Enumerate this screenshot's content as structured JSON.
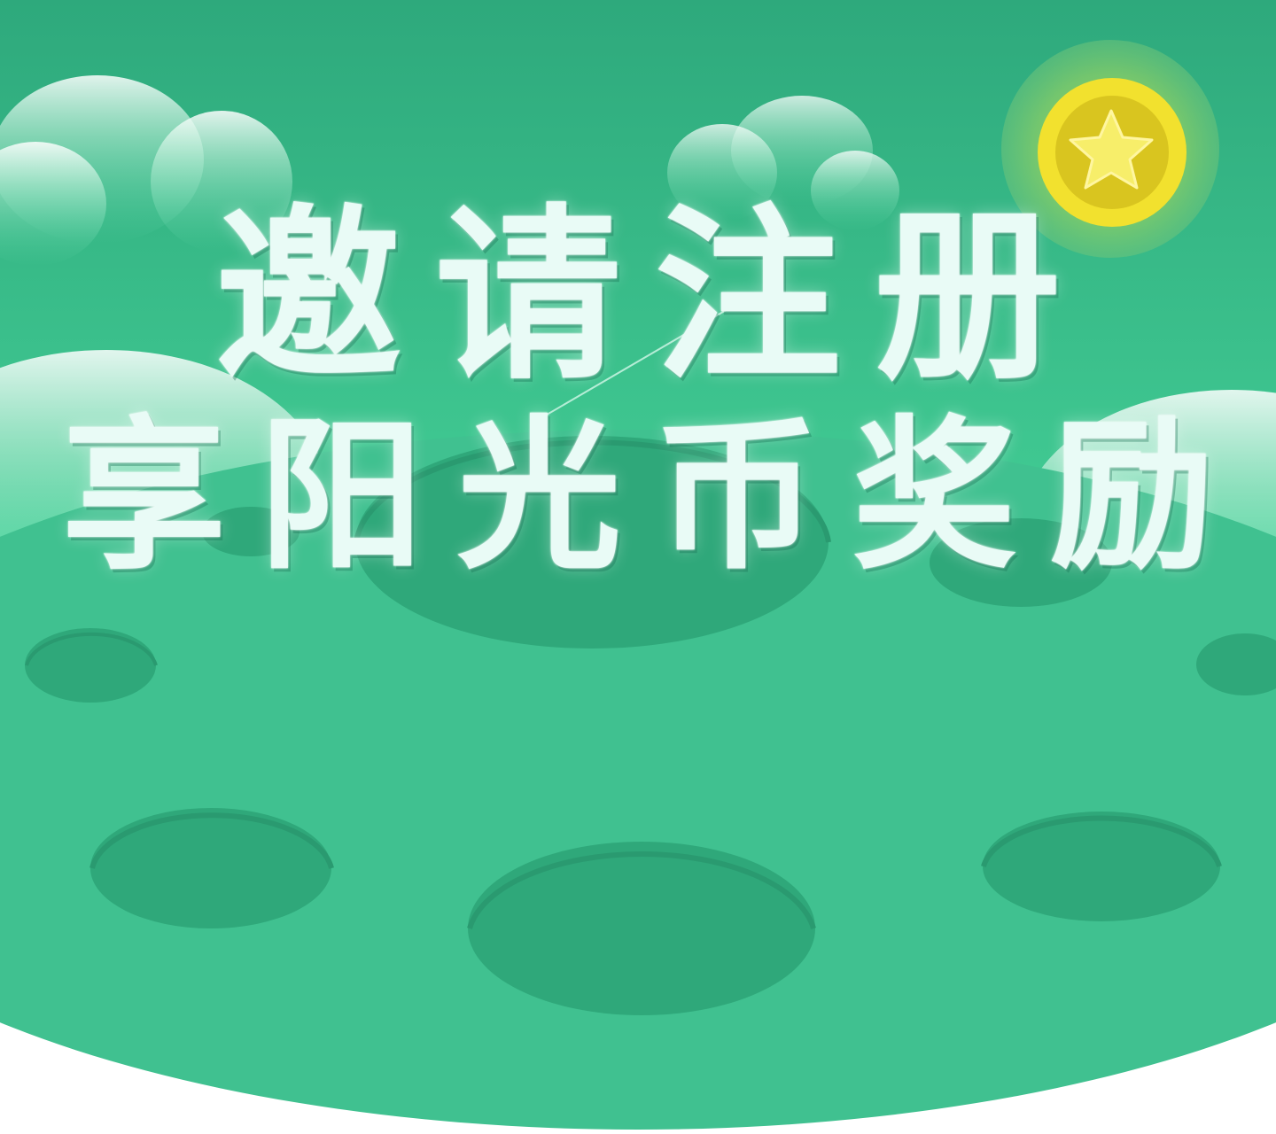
{
  "banner": {
    "title_line1": "邀请注册",
    "title_line2": "享阳光币奖励"
  },
  "coin": {
    "icon": "star-coin-icon"
  },
  "colors": {
    "sky_top": "#2ea97c",
    "sky_bottom": "#4fe3a8",
    "ground": "#40c190",
    "crater": "#2fa87a",
    "coin_yellow": "#f2e12e",
    "coin_dark": "#d9c51f",
    "text": "#e9fbf6"
  }
}
